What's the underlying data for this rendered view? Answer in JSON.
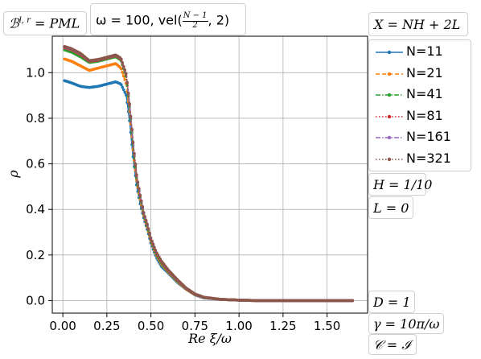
{
  "annotations": {
    "bc": "ℬ",
    "bc_sup": "l, r",
    "bc_rest": " = PML",
    "omega_prefix": "ω = 100, vel(",
    "omega_frac_num": "N − 1",
    "omega_frac_den": "2",
    "omega_suffix": ", 2)",
    "x_def": "X = NH + 2L",
    "h_def": "H = 1/10",
    "l_def": "L = 0",
    "d_def": "D = 1",
    "gamma_def": "γ = 10π/ω",
    "c_def": "𝒞 = ℐ"
  },
  "chart_data": {
    "type": "line",
    "title": "",
    "xlabel": "Re ξ/ω",
    "ylabel": "ρ",
    "xlim": [
      -0.06,
      1.73
    ],
    "ylim": [
      -0.055,
      1.16
    ],
    "xticks": [
      0.0,
      0.25,
      0.5,
      0.75,
      1.0,
      1.25,
      1.5
    ],
    "xtick_labels": [
      "0.00",
      "0.25",
      "0.50",
      "0.75",
      "1.00",
      "1.25",
      "1.50"
    ],
    "yticks": [
      0.0,
      0.2,
      0.4,
      0.6,
      0.8,
      1.0
    ],
    "ytick_labels": [
      "0.0",
      "0.2",
      "0.4",
      "0.6",
      "0.8",
      "1.0"
    ],
    "grid": true,
    "legend_position": "right",
    "series": [
      {
        "name": "N=11",
        "color": "#1f77b4",
        "marker_every": 0.0067,
        "x": [
          0.01,
          0.05,
          0.1,
          0.15,
          0.2,
          0.25,
          0.3,
          0.33,
          0.36,
          0.38,
          0.4,
          0.42,
          0.44,
          0.46,
          0.48,
          0.5,
          0.53,
          0.56,
          0.6,
          0.65,
          0.7,
          0.75,
          0.8,
          0.9,
          1.0,
          1.1,
          1.2,
          1.4,
          1.65
        ],
        "y": [
          0.965,
          0.955,
          0.94,
          0.935,
          0.94,
          0.95,
          0.96,
          0.95,
          0.9,
          0.78,
          0.62,
          0.5,
          0.42,
          0.36,
          0.31,
          0.25,
          0.19,
          0.15,
          0.12,
          0.08,
          0.05,
          0.025,
          0.012,
          0.005,
          0.002,
          0.0,
          0.0,
          0.0,
          0.0
        ]
      },
      {
        "name": "N=21",
        "color": "#ff7f0e",
        "marker_every": 0.0067,
        "x": [
          0.01,
          0.05,
          0.1,
          0.15,
          0.2,
          0.25,
          0.3,
          0.33,
          0.36,
          0.38,
          0.4,
          0.42,
          0.44,
          0.46,
          0.48,
          0.5,
          0.53,
          0.56,
          0.6,
          0.65,
          0.7,
          0.75,
          0.8,
          0.9,
          1.0,
          1.1,
          1.2,
          1.4,
          1.65
        ],
        "y": [
          1.06,
          1.05,
          1.03,
          1.01,
          1.02,
          1.03,
          1.04,
          1.02,
          0.95,
          0.82,
          0.65,
          0.52,
          0.44,
          0.37,
          0.32,
          0.26,
          0.2,
          0.16,
          0.125,
          0.085,
          0.05,
          0.026,
          0.013,
          0.005,
          0.002,
          0.0,
          0.0,
          0.0,
          0.0
        ]
      },
      {
        "name": "N=41",
        "color": "#2ca02c",
        "marker_every": 0.0067,
        "x": [
          0.01,
          0.05,
          0.1,
          0.15,
          0.2,
          0.25,
          0.3,
          0.33,
          0.36,
          0.38,
          0.4,
          0.42,
          0.44,
          0.46,
          0.48,
          0.5,
          0.53,
          0.56,
          0.6,
          0.65,
          0.7,
          0.75,
          0.8,
          0.9,
          1.0,
          1.1,
          1.2,
          1.4,
          1.65
        ],
        "y": [
          1.1,
          1.09,
          1.07,
          1.045,
          1.05,
          1.06,
          1.07,
          1.055,
          0.98,
          0.84,
          0.67,
          0.53,
          0.45,
          0.375,
          0.325,
          0.265,
          0.205,
          0.165,
          0.128,
          0.088,
          0.052,
          0.027,
          0.013,
          0.005,
          0.002,
          0.0,
          0.0,
          0.0,
          0.0
        ]
      },
      {
        "name": "N=81",
        "color": "#d62728",
        "marker_every": 0.0067,
        "x": [
          0.01,
          0.05,
          0.1,
          0.15,
          0.2,
          0.25,
          0.3,
          0.33,
          0.36,
          0.38,
          0.4,
          0.42,
          0.44,
          0.46,
          0.48,
          0.5,
          0.53,
          0.56,
          0.6,
          0.65,
          0.7,
          0.75,
          0.8,
          0.9,
          1.0,
          1.1,
          1.2,
          1.4,
          1.65
        ],
        "y": [
          1.11,
          1.1,
          1.08,
          1.05,
          1.055,
          1.065,
          1.075,
          1.06,
          0.99,
          0.85,
          0.68,
          0.54,
          0.455,
          0.38,
          0.33,
          0.27,
          0.21,
          0.17,
          0.13,
          0.09,
          0.053,
          0.028,
          0.014,
          0.005,
          0.002,
          0.0,
          0.0,
          0.0,
          0.0
        ]
      },
      {
        "name": "N=161",
        "color": "#9467bd",
        "marker_every": 0.0067,
        "x": [
          0.01,
          0.05,
          0.1,
          0.15,
          0.2,
          0.25,
          0.3,
          0.33,
          0.36,
          0.38,
          0.4,
          0.42,
          0.44,
          0.46,
          0.48,
          0.5,
          0.53,
          0.56,
          0.6,
          0.65,
          0.7,
          0.75,
          0.8,
          0.9,
          1.0,
          1.1,
          1.2,
          1.4,
          1.65
        ],
        "y": [
          1.113,
          1.103,
          1.083,
          1.052,
          1.057,
          1.067,
          1.077,
          1.062,
          0.992,
          0.852,
          0.682,
          0.542,
          0.457,
          0.382,
          0.332,
          0.272,
          0.212,
          0.172,
          0.132,
          0.091,
          0.054,
          0.028,
          0.014,
          0.005,
          0.002,
          0.0,
          0.0,
          0.0,
          0.0
        ]
      },
      {
        "name": "N=321",
        "color": "#8c564b",
        "marker_every": 0.0067,
        "x": [
          0.01,
          0.05,
          0.1,
          0.15,
          0.2,
          0.25,
          0.3,
          0.33,
          0.36,
          0.38,
          0.4,
          0.42,
          0.44,
          0.46,
          0.48,
          0.5,
          0.53,
          0.56,
          0.6,
          0.65,
          0.7,
          0.75,
          0.8,
          0.9,
          1.0,
          1.1,
          1.2,
          1.4,
          1.65
        ],
        "y": [
          1.115,
          1.105,
          1.085,
          1.053,
          1.058,
          1.068,
          1.078,
          1.063,
          0.993,
          0.853,
          0.683,
          0.543,
          0.458,
          0.383,
          0.333,
          0.273,
          0.213,
          0.173,
          0.133,
          0.092,
          0.055,
          0.029,
          0.015,
          0.005,
          0.002,
          0.0,
          0.0,
          0.0,
          0.0
        ]
      }
    ],
    "line_styles": [
      "solid",
      "dashed",
      "dashdot",
      "dotted",
      "dashdot",
      "dotted"
    ]
  }
}
